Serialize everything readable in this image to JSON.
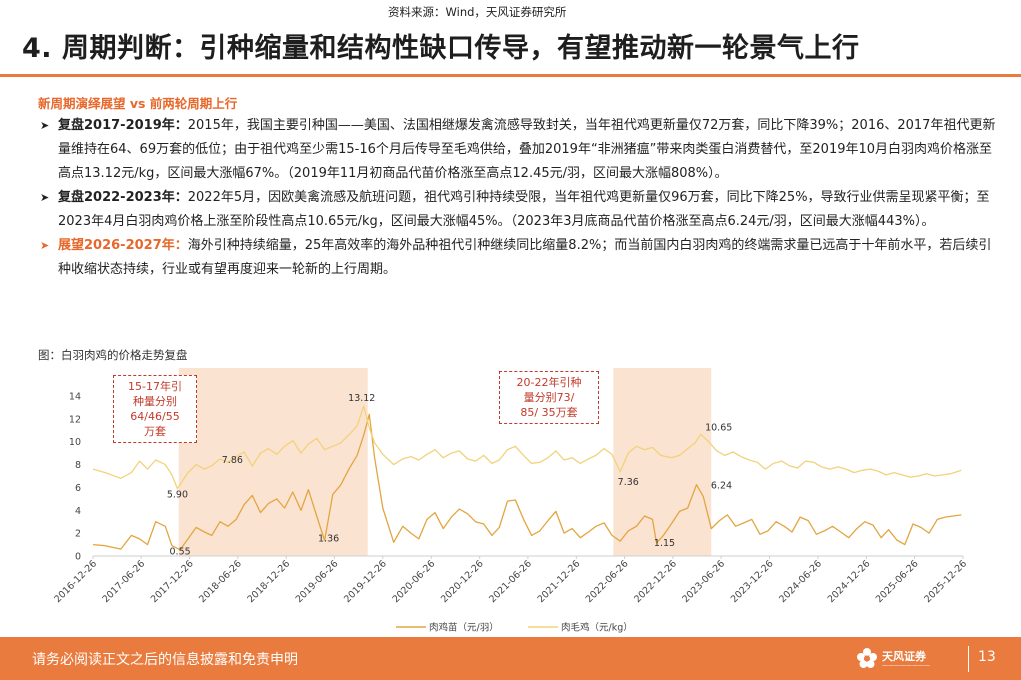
{
  "title": "4. 周期判断：引种缩量和结构性缺口传导，有望推动新一轮景气上行",
  "subheading": "新周期演绎展望 vs 前两轮周期上行",
  "bullets": [
    {
      "head": "复盘2017-2019年：",
      "text": "2015年，我国主要引种国——美国、法国相继爆发禽流感导致封关，当年祖代鸡更新量仅72万套，同比下降39%；2016、2017年祖代更新量维持在64、69万套的低位；由于祖代鸡至少需15-16个月后传导至毛鸡供给，叠加2019年“非洲猪瘟”带来肉类蛋白消费替代，至2019年10月白羽肉鸡价格涨至高点13.12元/kg，区间最大涨幅67%。（2019年11月初商品代苗价格涨至高点12.45元/羽，区间最大涨幅808%）。",
      "highlight": false
    },
    {
      "head": "复盘2022-2023年：",
      "text": "2022年5月，因欧美禽流感及航班问题，祖代鸡引种持续受限，当年祖代鸡更新量仅96万套，同比下降25%，导致行业供需呈现紧平衡；至2023年4月白羽肉鸡价格上涨至阶段性高点10.65元/kg，区间最大涨幅45%。（2023年3月底商品代苗价格涨至高点6.24元/羽，区间最大涨幅443%）。",
      "highlight": false
    },
    {
      "head": "展望2026-2027年：",
      "text": "海外引种持续缩量，25年高效率的海外品种祖代引种继续同比缩量8.2%；而当前国内白羽肉鸡的终端需求量已远高于十年前水平，若后续引种收缩状态持续，行业或有望再度迎来一轮新的上行周期。",
      "highlight": true
    }
  ],
  "figure_caption": "图：白羽肉鸡的价格走势复盘",
  "annotations": {
    "box1": [
      "15-17年引",
      "种量分别",
      "64/46/55",
      "万套"
    ],
    "box2": [
      "20-22年引种",
      "量分别73/",
      "85/ 35万套"
    ]
  },
  "footer": {
    "disclaimer": "请务必阅读正文之后的信息披露和免责申明",
    "source": "资料来源：Wind，天风证券研究所",
    "brand": "天风证券",
    "page": "13"
  },
  "colors": {
    "accent": "#ea7b3e",
    "chick_line": "#e3a540",
    "broiler_line": "#f2d27a",
    "shade": "#fbe3d2"
  },
  "chart_data": {
    "type": "line",
    "x_ticks": [
      "2016-12-26",
      "2017-06-26",
      "2017-12-26",
      "2018-06-26",
      "2018-12-26",
      "2019-06-26",
      "2019-12-26",
      "2020-06-26",
      "2020-12-26",
      "2021-06-26",
      "2021-12-26",
      "2022-06-26",
      "2022-12-26",
      "2023-06-26",
      "2023-12-26",
      "2024-06-26",
      "2024-12-26",
      "2025-06-26",
      "2025-12-26"
    ],
    "ylim": [
      0,
      14
    ],
    "y_ticks": [
      0,
      2,
      4,
      6,
      8,
      10,
      12,
      14
    ],
    "shaded_periods": [
      {
        "start": "2017-11-15",
        "end": "2019-10-30"
      },
      {
        "start": "2022-05-15",
        "end": "2023-05-20"
      }
    ],
    "labels": [
      {
        "text": "5.90",
        "date": "2017-11-10",
        "value": 5.9
      },
      {
        "text": "0.55",
        "date": "2017-11-20",
        "value": 0.55
      },
      {
        "text": "7.86",
        "date": "2018-08-20",
        "value": 7.86
      },
      {
        "text": "1.36",
        "date": "2019-05-20",
        "value": 1.36
      },
      {
        "text": "13.12",
        "date": "2019-10-15",
        "value": 13.12
      },
      {
        "text": "7.36",
        "date": "2022-06-10",
        "value": 7.36
      },
      {
        "text": "1.15",
        "date": "2022-10-25",
        "value": 1.15
      },
      {
        "text": "10.65",
        "date": "2023-04-10",
        "value": 10.65
      },
      {
        "text": "6.24",
        "date": "2023-03-25",
        "value": 6.24
      }
    ],
    "series": [
      {
        "name": "肉鸡苗（元/羽）",
        "x": [
          "2016-12-26",
          "2017-02-10",
          "2017-04-10",
          "2017-05-20",
          "2017-06-20",
          "2017-07-20",
          "2017-08-20",
          "2017-09-25",
          "2017-10-20",
          "2017-11-20",
          "2017-12-20",
          "2018-01-20",
          "2018-02-20",
          "2018-03-20",
          "2018-04-20",
          "2018-05-20",
          "2018-06-20",
          "2018-07-20",
          "2018-08-20",
          "2018-09-20",
          "2018-10-20",
          "2018-11-20",
          "2018-12-20",
          "2019-01-20",
          "2019-02-20",
          "2019-03-20",
          "2019-04-20",
          "2019-05-20",
          "2019-06-20",
          "2019-07-20",
          "2019-08-20",
          "2019-09-20",
          "2019-10-15",
          "2019-11-05",
          "2019-11-25",
          "2019-12-26",
          "2020-02-05",
          "2020-03-10",
          "2020-04-10",
          "2020-05-10",
          "2020-06-10",
          "2020-07-10",
          "2020-08-10",
          "2020-09-10",
          "2020-10-10",
          "2020-11-10",
          "2020-12-10",
          "2021-01-10",
          "2021-02-10",
          "2021-03-10",
          "2021-04-10",
          "2021-05-10",
          "2021-06-10",
          "2021-07-10",
          "2021-08-10",
          "2021-09-10",
          "2021-10-10",
          "2021-11-10",
          "2021-12-10",
          "2022-01-10",
          "2022-02-10",
          "2022-03-10",
          "2022-04-10",
          "2022-05-10",
          "2022-06-10",
          "2022-07-10",
          "2022-08-10",
          "2022-09-10",
          "2022-10-10",
          "2022-10-25",
          "2022-11-20",
          "2022-12-20",
          "2023-01-20",
          "2023-02-20",
          "2023-03-25",
          "2023-04-20",
          "2023-05-20",
          "2023-06-20",
          "2023-07-20",
          "2023-08-20",
          "2023-09-20",
          "2023-10-20",
          "2023-11-20",
          "2023-12-20",
          "2024-01-20",
          "2024-02-20",
          "2024-03-20",
          "2024-04-20",
          "2024-05-20",
          "2024-06-20",
          "2024-07-20",
          "2024-08-20",
          "2024-09-20",
          "2024-10-20",
          "2024-11-20",
          "2024-12-20",
          "2025-01-20",
          "2025-02-20",
          "2025-03-20",
          "2025-04-20",
          "2025-05-20",
          "2025-06-20",
          "2025-07-20",
          "2025-08-20",
          "2025-09-20",
          "2025-10-20",
          "2025-11-20",
          "2025-12-20"
        ],
        "values": [
          1.0,
          0.9,
          0.6,
          1.8,
          1.5,
          1.0,
          3.0,
          2.6,
          0.9,
          0.55,
          1.5,
          2.5,
          2.1,
          1.8,
          3.0,
          2.6,
          3.2,
          4.5,
          5.3,
          3.8,
          4.6,
          5.0,
          4.2,
          5.6,
          4.0,
          5.8,
          3.5,
          1.36,
          5.4,
          6.2,
          7.6,
          8.8,
          10.6,
          12.4,
          8.6,
          4.2,
          1.2,
          2.6,
          2.0,
          1.5,
          3.2,
          3.8,
          2.4,
          3.4,
          4.1,
          3.7,
          3.0,
          2.8,
          1.8,
          2.5,
          4.8,
          4.9,
          3.2,
          1.8,
          2.2,
          3.1,
          3.9,
          2.0,
          2.4,
          1.6,
          2.1,
          2.6,
          2.9,
          1.8,
          1.3,
          2.2,
          2.6,
          3.5,
          3.2,
          1.15,
          1.8,
          2.8,
          3.9,
          4.2,
          6.24,
          5.2,
          2.4,
          3.1,
          3.6,
          2.6,
          2.9,
          3.2,
          1.9,
          2.2,
          3.0,
          2.6,
          2.1,
          3.4,
          3.1,
          1.9,
          2.2,
          2.6,
          2.1,
          1.6,
          2.4,
          3.0,
          2.7,
          1.6,
          2.3,
          1.4,
          1.0,
          2.8,
          2.5,
          2.0,
          3.2,
          3.4,
          3.5,
          3.6
        ]
      },
      {
        "name": "肉毛鸡（元/kg）",
        "x": [
          "2016-12-26",
          "2017-02-10",
          "2017-04-10",
          "2017-05-20",
          "2017-06-20",
          "2017-07-20",
          "2017-08-20",
          "2017-09-25",
          "2017-10-20",
          "2017-11-10",
          "2017-12-20",
          "2018-01-20",
          "2018-02-20",
          "2018-03-20",
          "2018-04-20",
          "2018-05-20",
          "2018-06-20",
          "2018-07-20",
          "2018-08-20",
          "2018-09-20",
          "2018-10-20",
          "2018-11-20",
          "2018-12-20",
          "2019-01-20",
          "2019-02-20",
          "2019-03-20",
          "2019-04-20",
          "2019-05-20",
          "2019-06-20",
          "2019-07-20",
          "2019-08-20",
          "2019-09-20",
          "2019-10-15",
          "2019-11-05",
          "2019-11-25",
          "2019-12-26",
          "2020-02-05",
          "2020-03-10",
          "2020-04-10",
          "2020-05-10",
          "2020-06-10",
          "2020-07-10",
          "2020-08-10",
          "2020-09-10",
          "2020-10-10",
          "2020-11-10",
          "2020-12-10",
          "2021-01-10",
          "2021-02-10",
          "2021-03-10",
          "2021-04-10",
          "2021-05-10",
          "2021-06-10",
          "2021-07-10",
          "2021-08-10",
          "2021-09-10",
          "2021-10-10",
          "2021-11-10",
          "2021-12-10",
          "2022-01-10",
          "2022-02-10",
          "2022-03-10",
          "2022-04-10",
          "2022-05-10",
          "2022-06-10",
          "2022-07-10",
          "2022-08-10",
          "2022-09-10",
          "2022-10-10",
          "2022-11-10",
          "2022-12-20",
          "2023-01-20",
          "2023-02-20",
          "2023-03-20",
          "2023-04-10",
          "2023-05-10",
          "2023-06-10",
          "2023-07-10",
          "2023-08-10",
          "2023-09-10",
          "2023-10-10",
          "2023-11-10",
          "2023-12-10",
          "2024-01-10",
          "2024-02-10",
          "2024-03-10",
          "2024-04-10",
          "2024-05-10",
          "2024-06-10",
          "2024-07-10",
          "2024-08-10",
          "2024-09-10",
          "2024-10-10",
          "2024-11-10",
          "2024-12-10",
          "2025-01-10",
          "2025-02-10",
          "2025-03-10",
          "2025-04-10",
          "2025-05-10",
          "2025-06-10",
          "2025-07-10",
          "2025-08-10",
          "2025-09-10",
          "2025-10-10",
          "2025-11-10",
          "2025-12-20"
        ],
        "values": [
          7.6,
          7.3,
          6.8,
          7.3,
          8.3,
          7.6,
          8.4,
          8.0,
          7.1,
          5.9,
          7.3,
          8.0,
          7.6,
          7.9,
          8.5,
          8.2,
          8.7,
          9.1,
          7.86,
          9.0,
          9.4,
          8.9,
          9.6,
          10.1,
          9.0,
          9.8,
          10.3,
          9.3,
          9.6,
          9.9,
          10.6,
          11.4,
          13.12,
          11.2,
          9.9,
          8.9,
          8.0,
          8.5,
          8.7,
          8.4,
          8.9,
          9.3,
          8.6,
          9.0,
          9.2,
          8.5,
          8.3,
          8.8,
          8.1,
          8.4,
          9.3,
          9.6,
          8.8,
          8.1,
          8.2,
          8.6,
          9.2,
          8.4,
          8.6,
          8.1,
          8.5,
          8.8,
          9.4,
          8.9,
          7.36,
          9.0,
          9.6,
          9.3,
          9.5,
          8.8,
          8.6,
          8.8,
          9.4,
          9.9,
          10.65,
          10.0,
          9.2,
          8.8,
          9.1,
          8.7,
          8.4,
          8.2,
          7.6,
          8.1,
          8.3,
          7.9,
          7.7,
          8.3,
          8.2,
          7.8,
          7.6,
          7.8,
          7.6,
          7.3,
          7.5,
          7.6,
          7.4,
          7.1,
          7.3,
          7.1,
          6.9,
          7.0,
          7.2,
          7.0,
          7.1,
          7.2,
          7.5
        ]
      }
    ],
    "legend_position": "bottom-center",
    "grid": false
  }
}
